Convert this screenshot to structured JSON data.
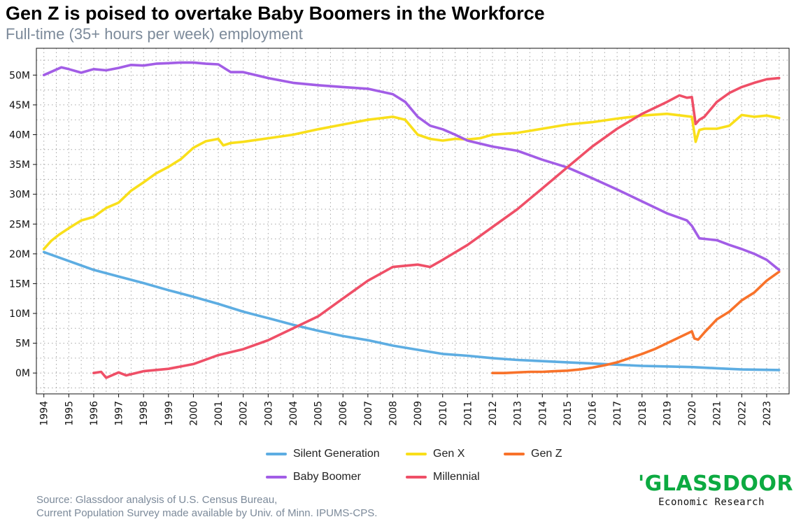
{
  "header": {
    "title": "Gen Z is poised to overtake Baby Boomers in the Workforce",
    "subtitle": "Full-time (35+ hours per week) employment"
  },
  "footer": {
    "source_line1": "Source: Glassdoor analysis of U.S. Census Bureau,",
    "source_line2": "Current Population Survey made available by Univ. of Minn. IPUMS-CPS.",
    "logo_text": "'GLASSDOOR'",
    "logo_subtext": "Economic Research"
  },
  "colors": {
    "Silent Generation": "#5dade2",
    "Gen X": "#f9df1a",
    "Gen Z": "#f8722a",
    "Baby Boomer": "#a25de6",
    "Millennial": "#ef4f67",
    "grid": "#a6a6a6",
    "brand": "#0caa41"
  },
  "chart_data": {
    "type": "line",
    "title": "Gen Z is poised to overtake Baby Boomers in the Workforce",
    "subtitle": "Full-time (35+ hours per week) employment",
    "xlabel": "",
    "ylabel": "",
    "x_ticks": [
      "1994",
      "1995",
      "1996",
      "1997",
      "1998",
      "1999",
      "2000",
      "2001",
      "2002",
      "2003",
      "2004",
      "2005",
      "2006",
      "2007",
      "2008",
      "2009",
      "2010",
      "2011",
      "2012",
      "2013",
      "2014",
      "2015",
      "2016",
      "2017",
      "2018",
      "2019",
      "2020",
      "2021",
      "2022",
      "2023"
    ],
    "y_ticks": [
      "0M",
      "5M",
      "10M",
      "15M",
      "20M",
      "25M",
      "30M",
      "35M",
      "40M",
      "45M",
      "50M"
    ],
    "xlim": [
      1993.7,
      2023.9
    ],
    "ylim": [
      -3.5,
      54.5
    ],
    "grid": true,
    "legend_position": "bottom",
    "legend": [
      "Silent Generation",
      "Gen X",
      "Gen Z",
      "Baby Boomer",
      "Millennial"
    ],
    "series": [
      {
        "name": "Silent Generation",
        "x": [
          1994.0,
          1995.0,
          1996.0,
          1997.0,
          1998.0,
          1999.0,
          2000.0,
          2001.0,
          2002.0,
          2003.0,
          2004.0,
          2005.0,
          2006.0,
          2007.0,
          2008.0,
          2009.0,
          2010.0,
          2011.0,
          2012.0,
          2013.0,
          2014.0,
          2015.0,
          2016.0,
          2017.0,
          2018.0,
          2019.0,
          2020.0,
          2021.0,
          2022.0,
          2023.5
        ],
        "y": [
          20.3,
          18.8,
          17.3,
          16.2,
          15.1,
          13.9,
          12.8,
          11.6,
          10.3,
          9.2,
          8.1,
          7.1,
          6.2,
          5.5,
          4.6,
          3.9,
          3.2,
          2.9,
          2.5,
          2.2,
          2.0,
          1.8,
          1.6,
          1.4,
          1.2,
          1.1,
          1.0,
          0.8,
          0.6,
          0.5
        ]
      },
      {
        "name": "Gen X",
        "x": [
          1994.0,
          1994.3,
          1994.6,
          1995.0,
          1995.5,
          1996.0,
          1996.5,
          1997.0,
          1997.5,
          1998.0,
          1998.5,
          1999.0,
          1999.5,
          2000.0,
          2000.5,
          2001.0,
          2001.2,
          2001.5,
          2002.0,
          2003.0,
          2004.0,
          2005.0,
          2006.0,
          2007.0,
          2008.0,
          2008.5,
          2009.0,
          2009.5,
          2010.0,
          2010.5,
          2011.0,
          2011.5,
          2012.0,
          2013.0,
          2014.0,
          2015.0,
          2016.0,
          2017.0,
          2018.0,
          2019.0,
          2020.0,
          2020.15,
          2020.3,
          2020.5,
          2021.0,
          2021.5,
          2022.0,
          2022.5,
          2023.0,
          2023.5
        ],
        "y": [
          20.8,
          22.2,
          23.2,
          24.3,
          25.6,
          26.2,
          27.7,
          28.6,
          30.6,
          32.0,
          33.5,
          34.6,
          35.9,
          37.8,
          38.9,
          39.3,
          38.2,
          38.6,
          38.8,
          39.4,
          40.0,
          40.9,
          41.7,
          42.5,
          43.0,
          42.5,
          40.0,
          39.3,
          39.0,
          39.3,
          39.2,
          39.4,
          40.0,
          40.3,
          41.0,
          41.7,
          42.1,
          42.7,
          43.2,
          43.5,
          43.0,
          38.8,
          40.8,
          41.0,
          41.0,
          41.5,
          43.3,
          43.0,
          43.2,
          42.8
        ]
      },
      {
        "name": "Gen Z",
        "x": [
          2012.0,
          2012.5,
          2013.0,
          2013.5,
          2014.0,
          2014.5,
          2015.0,
          2015.5,
          2016.0,
          2016.5,
          2017.0,
          2017.5,
          2018.0,
          2018.5,
          2019.0,
          2019.5,
          2020.0,
          2020.1,
          2020.25,
          2020.5,
          2021.0,
          2021.5,
          2022.0,
          2022.5,
          2023.0,
          2023.5
        ],
        "y": [
          0.0,
          0.0,
          0.1,
          0.2,
          0.2,
          0.3,
          0.4,
          0.6,
          0.9,
          1.3,
          1.8,
          2.5,
          3.2,
          4.0,
          5.0,
          6.0,
          7.0,
          5.8,
          5.6,
          6.8,
          9.0,
          10.3,
          12.2,
          13.5,
          15.5,
          17.0
        ]
      },
      {
        "name": "Baby Boomer",
        "x": [
          1994.0,
          1994.7,
          1995.0,
          1995.5,
          1996.0,
          1996.5,
          1997.0,
          1997.5,
          1998.0,
          1998.5,
          1999.0,
          1999.5,
          2000.0,
          2000.5,
          2001.0,
          2001.5,
          2002.0,
          2003.0,
          2004.0,
          2005.0,
          2006.0,
          2007.0,
          2008.0,
          2008.5,
          2009.0,
          2009.5,
          2010.0,
          2010.5,
          2011.0,
          2012.0,
          2013.0,
          2014.0,
          2015.0,
          2016.0,
          2017.0,
          2018.0,
          2019.0,
          2019.8,
          2020.0,
          2020.3,
          2021.0,
          2021.5,
          2022.0,
          2022.5,
          2023.0,
          2023.5
        ],
        "y": [
          50.0,
          51.3,
          51.0,
          50.4,
          51.0,
          50.8,
          51.2,
          51.7,
          51.6,
          51.9,
          52.0,
          52.1,
          52.1,
          51.9,
          51.8,
          50.5,
          50.5,
          49.5,
          48.7,
          48.3,
          48.0,
          47.7,
          46.8,
          45.5,
          43.0,
          41.5,
          40.9,
          40.0,
          39.0,
          38.0,
          37.3,
          35.8,
          34.5,
          32.7,
          30.8,
          28.8,
          26.8,
          25.6,
          24.7,
          22.6,
          22.3,
          21.5,
          20.8,
          20.0,
          19.0,
          17.3
        ]
      },
      {
        "name": "Millennial",
        "x": [
          1996.0,
          1996.3,
          1996.5,
          1997.0,
          1997.3,
          1998.0,
          1999.0,
          2000.0,
          2001.0,
          2002.0,
          2003.0,
          2004.0,
          2005.0,
          2006.0,
          2007.0,
          2008.0,
          2009.0,
          2009.5,
          2010.0,
          2011.0,
          2012.0,
          2013.0,
          2014.0,
          2015.0,
          2016.0,
          2017.0,
          2018.0,
          2019.0,
          2019.5,
          2019.8,
          2020.0,
          2020.15,
          2020.3,
          2020.5,
          2021.0,
          2021.5,
          2022.0,
          2022.5,
          2023.0,
          2023.5
        ],
        "y": [
          0.0,
          0.2,
          -0.8,
          0.1,
          -0.4,
          0.3,
          0.7,
          1.5,
          3.0,
          4.0,
          5.5,
          7.5,
          9.5,
          12.5,
          15.5,
          17.8,
          18.2,
          17.8,
          19.0,
          21.5,
          24.5,
          27.5,
          31.0,
          34.5,
          38.0,
          41.0,
          43.5,
          45.5,
          46.6,
          46.2,
          46.3,
          41.8,
          42.5,
          43.0,
          45.5,
          47.0,
          48.0,
          48.7,
          49.3,
          49.5
        ]
      }
    ]
  }
}
